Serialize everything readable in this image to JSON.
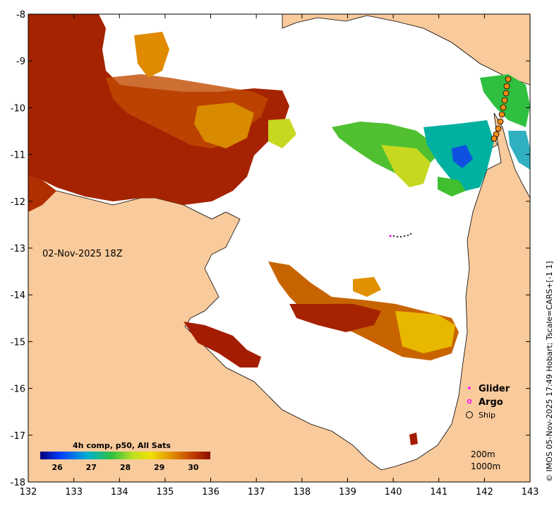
{
  "map": {
    "date_label": "02-Nov-2025 18Z",
    "credit": "© IMOS 05-Nov-2025 17:49 Hobart; Tscale=CARS+[-1 1]",
    "colorbar": {
      "title": "4h comp, p50, All Sats",
      "ticks": [
        "26",
        "27",
        "28",
        "29",
        "30"
      ],
      "range": [
        25.5,
        30.5
      ]
    },
    "legend": {
      "glider": "Glider",
      "argo": "Argo",
      "ship": "Ship"
    },
    "isobaths": [
      "200m",
      "1000m"
    ],
    "axes": {
      "x_ticks": [
        "132",
        "133",
        "134",
        "135",
        "136",
        "137",
        "138",
        "139",
        "140",
        "141",
        "142",
        "143"
      ],
      "y_ticks": [
        "-8",
        "-9",
        "-10",
        "-11",
        "-12",
        "-13",
        "-14",
        "-15",
        "-16",
        "-17",
        "-18"
      ],
      "xlim": [
        132,
        143
      ],
      "ylim": [
        -18,
        -8
      ]
    },
    "colors": {
      "land": "#f9ca9b",
      "cloud": "#ffffff",
      "sst_hot": "#a51d00",
      "sst_warm": "#e0a000",
      "sst_mid": "#40c030",
      "sst_cool": "#0060ff",
      "glider": "#ff00ff",
      "argo": "#ff00ff",
      "ship": "#f08c1a"
    }
  }
}
